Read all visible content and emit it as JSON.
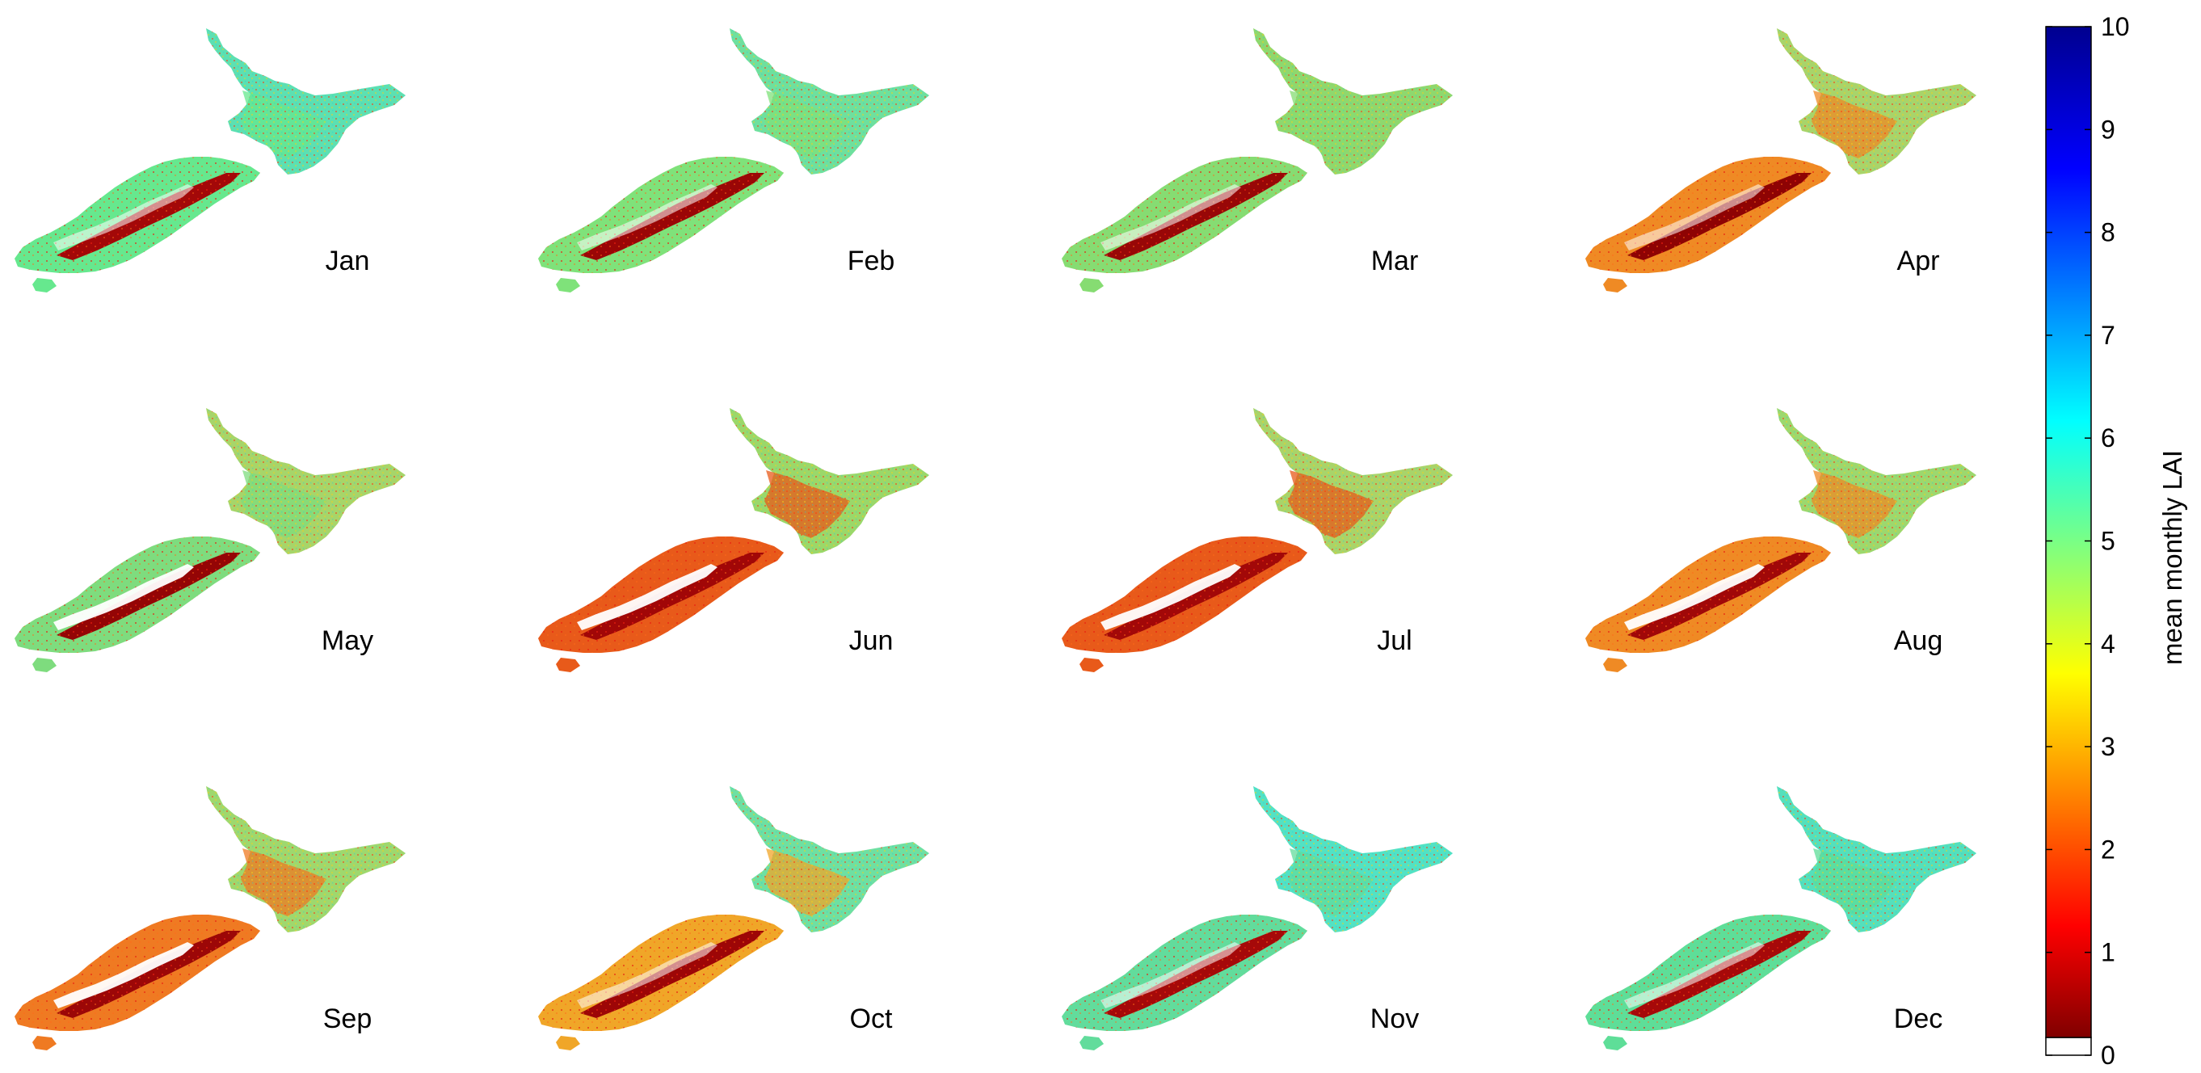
{
  "figure": {
    "panels": [
      {
        "month": "Jan",
        "north": "#5ce0b2",
        "south": "#a30808",
        "coast": "#66e88e"
      },
      {
        "month": "Feb",
        "north": "#6ee09e",
        "south": "#9a0606",
        "coast": "#7fe27a"
      },
      {
        "month": "Mar",
        "north": "#8ed86e",
        "south": "#980707",
        "coast": "#86dc72"
      },
      {
        "month": "Apr",
        "north": "#a8d46a",
        "south": "#8e0303",
        "coast": "#ef8a24"
      },
      {
        "month": "May",
        "north": "#a6d56a",
        "south": "#940505",
        "coast": "#7edc7e"
      },
      {
        "month": "Jun",
        "north": "#9ad86a",
        "south": "#a10707",
        "coast": "#e85a1a"
      },
      {
        "month": "Jul",
        "north": "#a8d46a",
        "south": "#a20808",
        "coast": "#e85a1a"
      },
      {
        "month": "Aug",
        "north": "#9cd86e",
        "south": "#a00808",
        "coast": "#ef8a24"
      },
      {
        "month": "Sep",
        "north": "#9ed86e",
        "south": "#9c0707",
        "coast": "#ef7a22"
      },
      {
        "month": "Oct",
        "north": "#6ee0a2",
        "south": "#9d0606",
        "coast": "#f0a628"
      },
      {
        "month": "Nov",
        "north": "#52e2c4",
        "south": "#a50909",
        "coast": "#62dc9c"
      },
      {
        "month": "Dec",
        "north": "#54e0bc",
        "south": "#a60909",
        "coast": "#5ede98"
      }
    ],
    "colorbar": {
      "label": "mean monthly LAI",
      "ticks": [
        "0",
        "1",
        "2",
        "3",
        "4",
        "5",
        "6",
        "7",
        "8",
        "9",
        "10"
      ],
      "min": 0,
      "max": 10,
      "colormap": "jet",
      "stops": [
        "#800000",
        "#ff0000",
        "#ffff00",
        "#00ffff",
        "#0000ff",
        "#00008f"
      ]
    }
  }
}
